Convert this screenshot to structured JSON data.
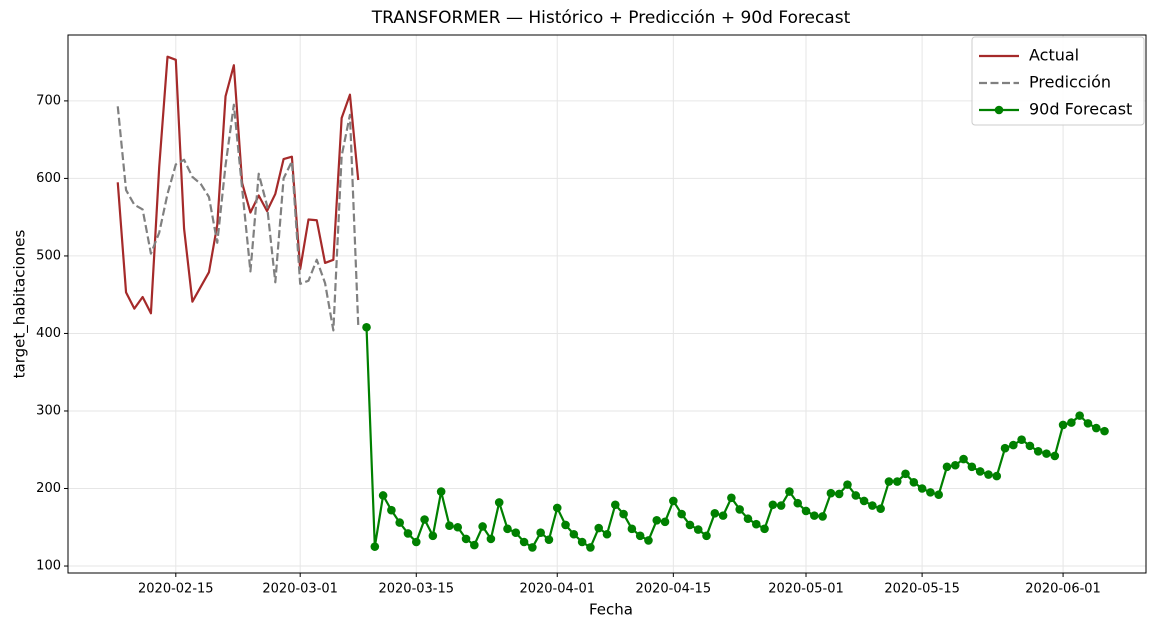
{
  "chart_data": {
    "type": "line",
    "title": "TRANSFORMER — Histórico + Predicción + 90d Forecast",
    "x_label": "Fecha",
    "y_label": "target_habitaciones",
    "xlim": [
      "2020-02-02",
      "2020-06-11"
    ],
    "xticks": [
      "2020-02-15",
      "2020-03-01",
      "2020-03-15",
      "2020-04-01",
      "2020-04-15",
      "2020-05-01",
      "2020-05-15",
      "2020-06-01"
    ],
    "ylim": [
      91,
      785
    ],
    "yticks": [
      100,
      200,
      300,
      400,
      500,
      600,
      700
    ],
    "grid": true,
    "legend": "upper right",
    "series": [
      {
        "name": "Actual",
        "color": "#a52a2a",
        "style": "solid",
        "marker": "none",
        "x": [
          "2020-02-08",
          "2020-02-09",
          "2020-02-10",
          "2020-02-11",
          "2020-02-12",
          "2020-02-13",
          "2020-02-14",
          "2020-02-15",
          "2020-02-16",
          "2020-02-17",
          "2020-02-18",
          "2020-02-19",
          "2020-02-20",
          "2020-02-21",
          "2020-02-22",
          "2020-02-23",
          "2020-02-24",
          "2020-02-25",
          "2020-02-26",
          "2020-02-27",
          "2020-02-28",
          "2020-02-29",
          "2020-03-01",
          "2020-03-02",
          "2020-03-03",
          "2020-03-04",
          "2020-03-05",
          "2020-03-06",
          "2020-03-07",
          "2020-03-08"
        ],
        "values": [
          595,
          453,
          432,
          447,
          426,
          615,
          757,
          753,
          535,
          441,
          460,
          479,
          540,
          706,
          746,
          594,
          556,
          578,
          558,
          580,
          625,
          628,
          483,
          547,
          546,
          491,
          495,
          678,
          708,
          598
        ]
      },
      {
        "name": "Predicción",
        "color": "#808080",
        "style": "dashed",
        "marker": "none",
        "x": [
          "2020-02-08",
          "2020-02-09",
          "2020-02-10",
          "2020-02-11",
          "2020-02-12",
          "2020-02-13",
          "2020-02-14",
          "2020-02-15",
          "2020-02-16",
          "2020-02-17",
          "2020-02-18",
          "2020-02-19",
          "2020-02-20",
          "2020-02-21",
          "2020-02-22",
          "2020-02-23",
          "2020-02-24",
          "2020-02-25",
          "2020-02-26",
          "2020-02-27",
          "2020-02-28",
          "2020-02-29",
          "2020-03-01",
          "2020-03-02",
          "2020-03-03",
          "2020-03-04",
          "2020-03-05",
          "2020-03-06",
          "2020-03-07",
          "2020-03-08"
        ],
        "values": [
          693,
          585,
          566,
          560,
          503,
          530,
          580,
          618,
          624,
          602,
          593,
          576,
          517,
          617,
          695,
          587,
          480,
          606,
          565,
          466,
          600,
          622,
          464,
          468,
          495,
          465,
          404,
          629,
          682,
          411
        ]
      },
      {
        "name": "90d Forecast",
        "color": "#008000",
        "style": "solid",
        "marker": "circle",
        "x": [
          "2020-03-09",
          "2020-03-10",
          "2020-03-11",
          "2020-03-12",
          "2020-03-13",
          "2020-03-14",
          "2020-03-15",
          "2020-03-16",
          "2020-03-17",
          "2020-03-18",
          "2020-03-19",
          "2020-03-20",
          "2020-03-21",
          "2020-03-22",
          "2020-03-23",
          "2020-03-24",
          "2020-03-25",
          "2020-03-26",
          "2020-03-27",
          "2020-03-28",
          "2020-03-29",
          "2020-03-30",
          "2020-03-31",
          "2020-04-01",
          "2020-04-02",
          "2020-04-03",
          "2020-04-04",
          "2020-04-05",
          "2020-04-06",
          "2020-04-07",
          "2020-04-08",
          "2020-04-09",
          "2020-04-10",
          "2020-04-11",
          "2020-04-12",
          "2020-04-13",
          "2020-04-14",
          "2020-04-15",
          "2020-04-16",
          "2020-04-17",
          "2020-04-18",
          "2020-04-19",
          "2020-04-20",
          "2020-04-21",
          "2020-04-22",
          "2020-04-23",
          "2020-04-24",
          "2020-04-25",
          "2020-04-26",
          "2020-04-27",
          "2020-04-28",
          "2020-04-29",
          "2020-04-30",
          "2020-05-01",
          "2020-05-02",
          "2020-05-03",
          "2020-05-04",
          "2020-05-05",
          "2020-05-06",
          "2020-05-07",
          "2020-05-08",
          "2020-05-09",
          "2020-05-10",
          "2020-05-11",
          "2020-05-12",
          "2020-05-13",
          "2020-05-14",
          "2020-05-15",
          "2020-05-16",
          "2020-05-17",
          "2020-05-18",
          "2020-05-19",
          "2020-05-20",
          "2020-05-21",
          "2020-05-22",
          "2020-05-23",
          "2020-05-24",
          "2020-05-25",
          "2020-05-26",
          "2020-05-27",
          "2020-05-28",
          "2020-05-29",
          "2020-05-30",
          "2020-05-31",
          "2020-06-01",
          "2020-06-02",
          "2020-06-03",
          "2020-06-04",
          "2020-06-05",
          "2020-06-06"
        ],
        "values": [
          408,
          125,
          191,
          172,
          156,
          142,
          131,
          160,
          139,
          196,
          152,
          150,
          135,
          127,
          151,
          135,
          182,
          148,
          143,
          131,
          124,
          143,
          134,
          175,
          153,
          141,
          131,
          124,
          149,
          141,
          179,
          167,
          148,
          139,
          133,
          159,
          157,
          184,
          167,
          153,
          147,
          139,
          168,
          165,
          188,
          173,
          161,
          154,
          148,
          179,
          178,
          196,
          181,
          171,
          165,
          164,
          194,
          193,
          205,
          191,
          184,
          178,
          174,
          209,
          209,
          219,
          208,
          200,
          195,
          192,
          228,
          230,
          238,
          228,
          222,
          218,
          216,
          252,
          256,
          263,
          255,
          248,
          245,
          242,
          282,
          285,
          294,
          284,
          278,
          274
        ]
      }
    ]
  }
}
